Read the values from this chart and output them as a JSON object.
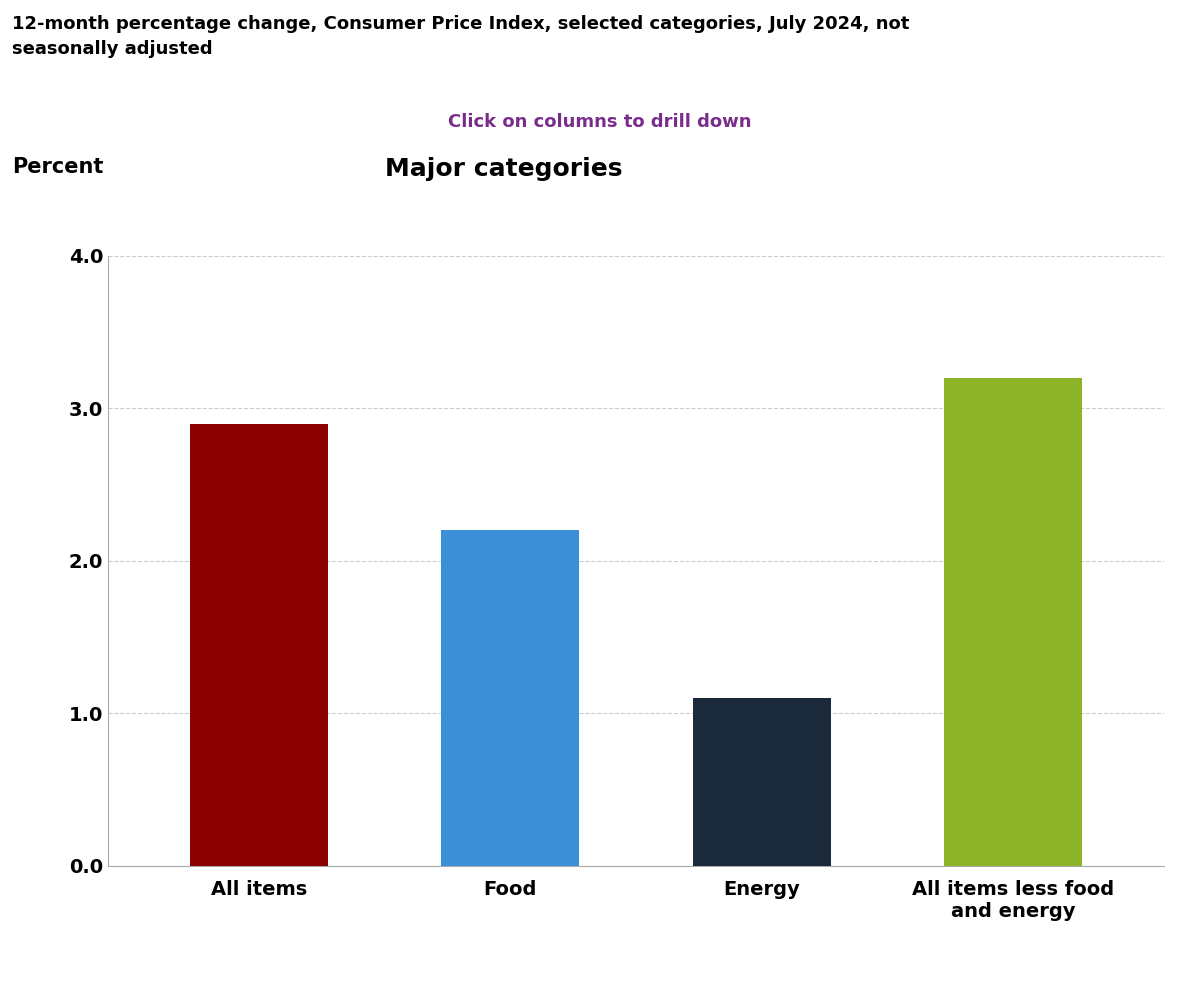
{
  "title_line1": "12-month percentage change, Consumer Price Index, selected categories, July 2024, not",
  "title_line2": "seasonally adjusted",
  "subtitle": "Click on columns to drill down",
  "subtitle_color": "#7B2D8B",
  "chart_title": "Major categories",
  "ylabel": "Percent",
  "categories": [
    "All items",
    "Food",
    "Energy",
    "All items less food\nand energy"
  ],
  "values": [
    2.9,
    2.2,
    1.1,
    3.2
  ],
  "bar_colors": [
    "#8B0000",
    "#3A8FD6",
    "#1B2A3B",
    "#8DB428"
  ],
  "ylim": [
    0.0,
    4.0
  ],
  "yticks": [
    0.0,
    1.0,
    2.0,
    3.0,
    4.0
  ],
  "background_color": "#FFFFFF",
  "grid_color": "#CCCCCC",
  "bar_width": 0.55
}
